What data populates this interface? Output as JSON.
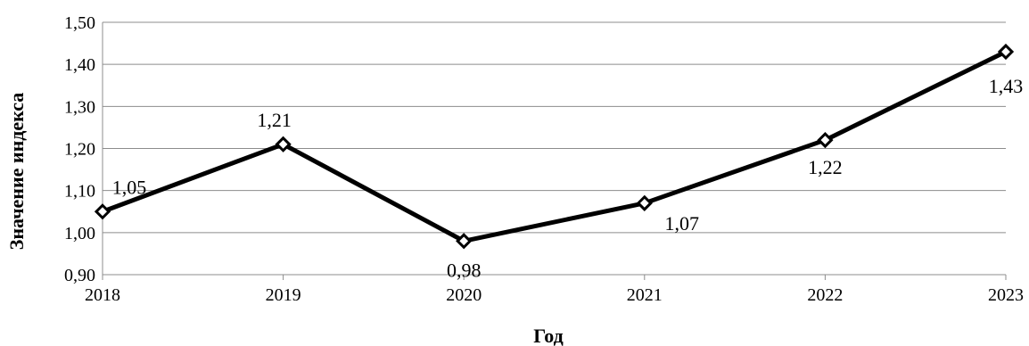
{
  "chart_data": {
    "type": "line",
    "x": [
      "2018",
      "2019",
      "2020",
      "2021",
      "2022",
      "2023"
    ],
    "series": [
      {
        "values": [
          1.05,
          1.21,
          0.98,
          1.07,
          1.22,
          1.43
        ]
      }
    ],
    "data_labels": [
      "1,05",
      "1,21",
      "0,98",
      "1,07",
      "1,22",
      "1,43"
    ],
    "yticks": [
      0.9,
      1.0,
      1.1,
      1.2,
      1.3,
      1.4,
      1.5
    ],
    "ytick_labels": [
      "0,90",
      "1,00",
      "1,10",
      "1,20",
      "1,30",
      "1,40",
      "1,50"
    ],
    "xlabel": "Год",
    "ylabel": "Значение индекса",
    "ylim": [
      0.9,
      1.5
    ],
    "grid": true,
    "legend": false,
    "line_color": "#000000",
    "marker": "diamond",
    "marker_fill": "#ffffff",
    "grid_color": "#8c8c8c"
  }
}
